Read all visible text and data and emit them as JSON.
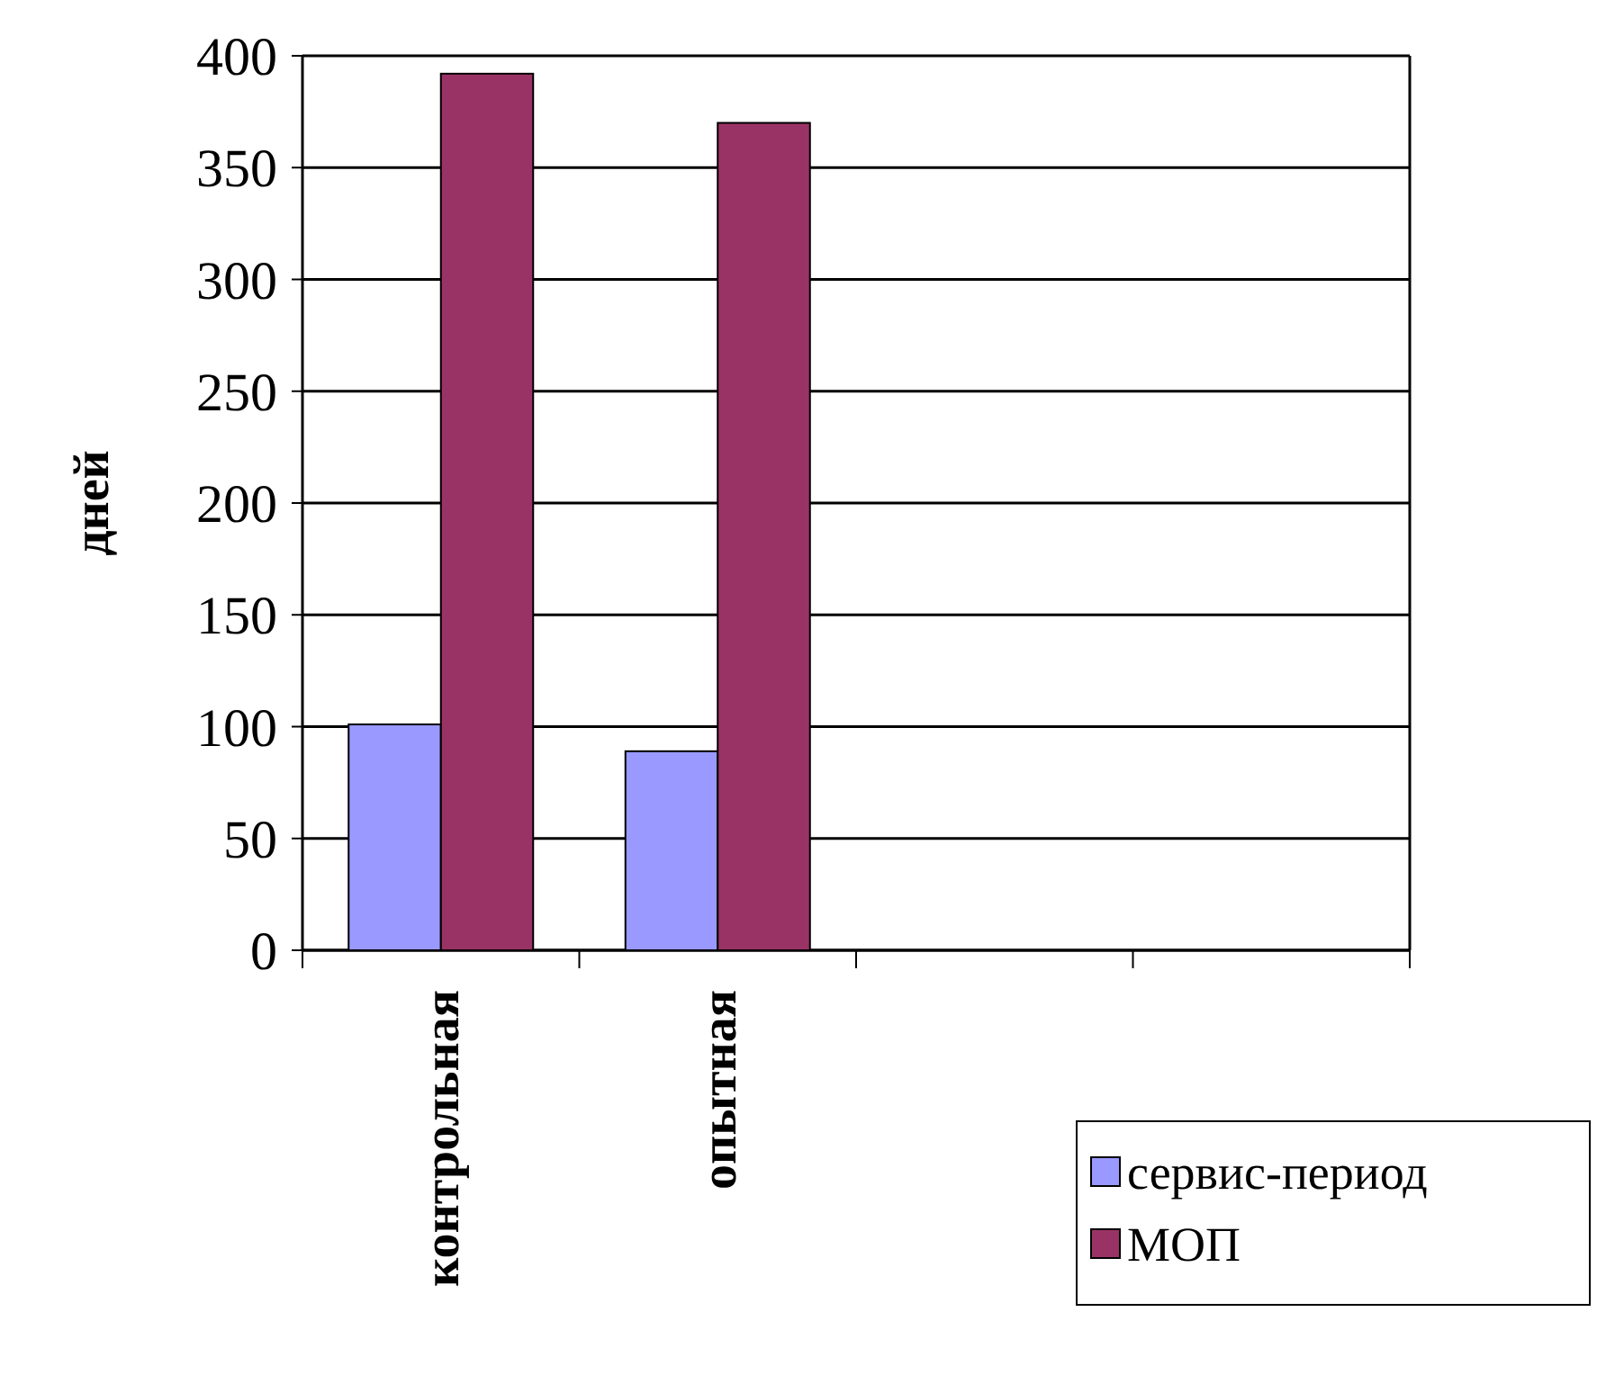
{
  "chart_data": {
    "type": "bar",
    "ylabel": "дней",
    "categories": [
      "контрольная",
      "опытная",
      null,
      null
    ],
    "series": [
      {
        "name": "сервис-период",
        "color": "#9999ff",
        "values": [
          101,
          89,
          null,
          null
        ]
      },
      {
        "name": "МОП",
        "color": "#993366",
        "values": [
          392,
          370,
          null,
          null
        ]
      }
    ],
    "ylim": [
      0,
      400
    ],
    "yticks": [
      0,
      50,
      100,
      150,
      200,
      250,
      300,
      350,
      400
    ],
    "grid": "y",
    "legend": "bottom right"
  }
}
